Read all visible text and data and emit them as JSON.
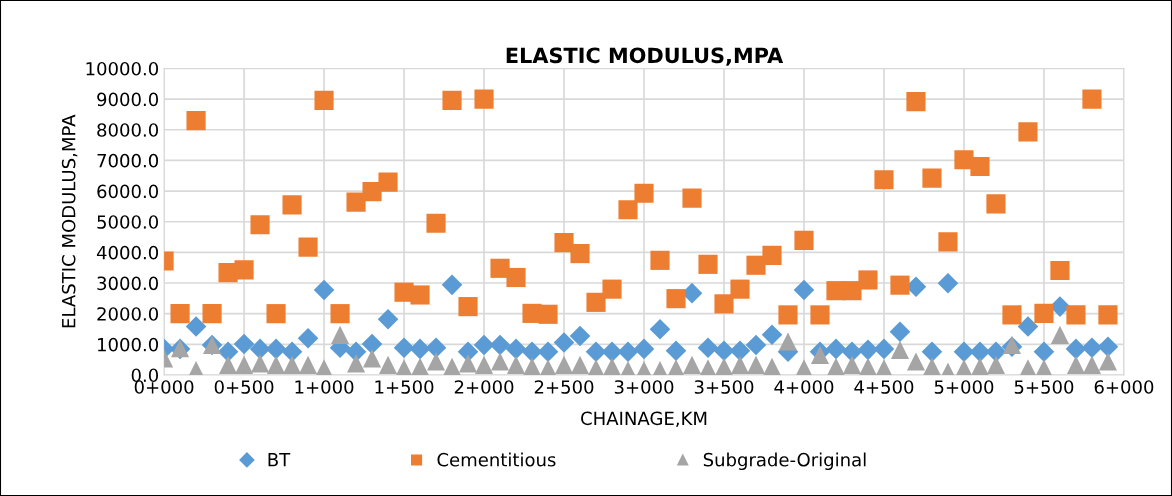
{
  "chart_data": {
    "type": "scatter",
    "title": "ELASTIC MODULUS,MPA",
    "xlabel": "CHAINAGE,KM",
    "ylabel": "ELASTIC MODULUS,MPA",
    "categories": [
      "0+000",
      null,
      null,
      null,
      null,
      "0+500",
      null,
      null,
      null,
      null,
      "1+000",
      null,
      null,
      null,
      null,
      "1+500",
      null,
      null,
      null,
      null,
      "2+000",
      null,
      null,
      null,
      null,
      "2+500",
      null,
      null,
      null,
      null,
      "3+000",
      null,
      null,
      null,
      null,
      "3+500",
      null,
      null,
      null,
      null,
      "4+000",
      null,
      null,
      null,
      null,
      "4+500",
      null,
      null,
      null,
      null,
      "5+000",
      null,
      null,
      null,
      null,
      "5+500",
      null,
      null,
      null,
      null,
      "6+000"
    ],
    "series": [
      {
        "name": "BT",
        "color": "#5b9bd5",
        "marker": "diamond",
        "values": [
          850,
          850,
          1580,
          980,
          760,
          1010,
          850,
          850,
          760,
          1200,
          2770,
          890,
          760,
          1010,
          1820,
          890,
          850,
          890,
          2940,
          760,
          980,
          980,
          850,
          760,
          760,
          1060,
          1270,
          760,
          760,
          760,
          850,
          1490,
          790,
          2670,
          890,
          790,
          790,
          980,
          1310,
          760,
          2770,
          760,
          850,
          760,
          820,
          850,
          1410,
          2880,
          760,
          2990,
          760,
          760,
          760,
          920,
          1580,
          760,
          2230,
          850,
          890,
          920,
          null
        ]
      },
      {
        "name": "Cementitious",
        "color": "#ed7d31",
        "marker": "square",
        "values": [
          3720,
          2000,
          8300,
          2000,
          3340,
          3430,
          4900,
          2000,
          5550,
          4170,
          8960,
          2000,
          5640,
          5980,
          6290,
          2700,
          2610,
          4950,
          8960,
          2230,
          9000,
          3480,
          3180,
          2010,
          1980,
          4320,
          3960,
          2370,
          2800,
          5390,
          5930,
          3740,
          2490,
          5770,
          3610,
          2320,
          2800,
          3580,
          3900,
          1960,
          4390,
          1960,
          2750,
          2750,
          3100,
          6370,
          2930,
          8920,
          6420,
          4340,
          7020,
          6800,
          5580,
          1960,
          7930,
          2010,
          3410,
          1960,
          9000,
          1960,
          null
        ]
      },
      {
        "name": "Subgrade-Original",
        "color": "#a5a5a5",
        "marker": "triangle",
        "values": [
          540,
          870,
          160,
          980,
          330,
          330,
          380,
          330,
          330,
          330,
          220,
          1310,
          380,
          540,
          330,
          220,
          270,
          440,
          270,
          380,
          330,
          440,
          330,
          270,
          220,
          330,
          330,
          220,
          270,
          160,
          160,
          160,
          220,
          330,
          220,
          270,
          330,
          330,
          270,
          1090,
          220,
          650,
          270,
          330,
          270,
          220,
          820,
          440,
          270,
          110,
          220,
          270,
          330,
          980,
          220,
          220,
          1310,
          330,
          330,
          440,
          null
        ]
      }
    ],
    "ylim": [
      0,
      10000
    ],
    "yticks": [
      {
        "value": 0,
        "label": "0.0"
      },
      {
        "value": 1000,
        "label": "1000.0"
      },
      {
        "value": 2000,
        "label": "2000.0"
      },
      {
        "value": 3000,
        "label": "3000.0"
      },
      {
        "value": 4000,
        "label": "4000.0"
      },
      {
        "value": 5000,
        "label": "5000.0"
      },
      {
        "value": 6000,
        "label": "6000.0"
      },
      {
        "value": 7000,
        "label": "7000.0"
      },
      {
        "value": 8000,
        "label": "8000.0"
      },
      {
        "value": 9000,
        "label": "9000.0"
      },
      {
        "value": 10000,
        "label": "10000.0"
      }
    ],
    "grid": true,
    "legend": "bottom"
  }
}
